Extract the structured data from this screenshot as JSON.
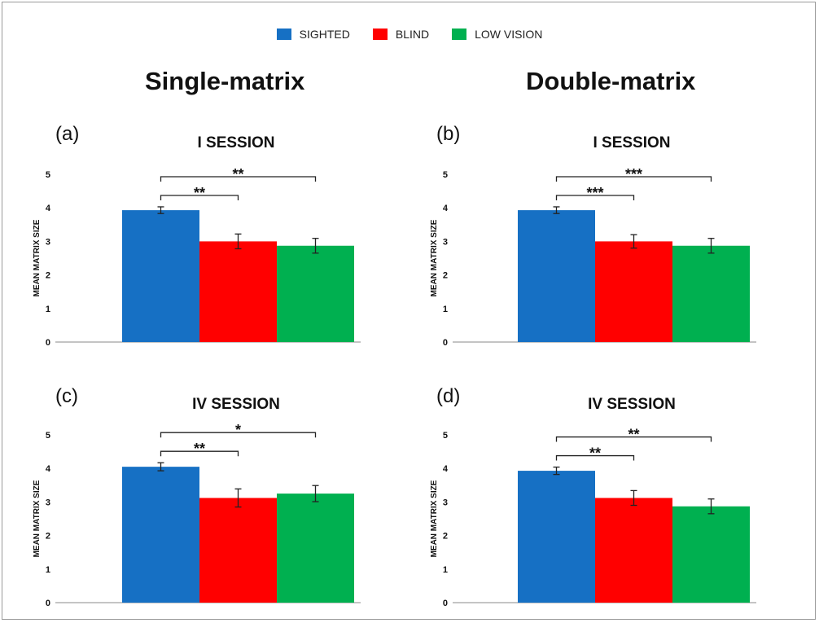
{
  "legend": [
    {
      "label": "SIGHTED",
      "color": "#1670c4"
    },
    {
      "label": "BLIND",
      "color": "#ff0000"
    },
    {
      "label": "LOW VISION",
      "color": "#00b050"
    }
  ],
  "column_titles": [
    "Single-matrix",
    "Double-matrix"
  ],
  "chart_data": [
    {
      "type": "bar",
      "panel": "(a)",
      "title": "I SESSION",
      "categories": [
        "SIGHTED",
        "BLIND",
        "LOW VISION"
      ],
      "values": [
        3.93,
        3.0,
        2.87
      ],
      "errors": [
        0.1,
        0.22,
        0.22
      ],
      "ylabel": "MEAN MATRIX SIZE",
      "ylim": [
        0,
        5
      ],
      "yticks": [
        "0",
        "1",
        "2",
        "3",
        "4",
        "5"
      ],
      "significance": [
        {
          "from": 0,
          "to": 1,
          "label": "**"
        },
        {
          "from": 0,
          "to": 2,
          "label": "**"
        }
      ]
    },
    {
      "type": "bar",
      "panel": "(b)",
      "title": "I  SESSION",
      "categories": [
        "SIGHTED",
        "BLIND",
        "LOW VISION"
      ],
      "values": [
        3.93,
        3.0,
        2.87
      ],
      "errors": [
        0.1,
        0.2,
        0.22
      ],
      "ylabel": "MEAN MATRIX SIZE",
      "ylim": [
        0,
        5
      ],
      "yticks": [
        "0",
        "1",
        "2",
        "3",
        "4",
        "5"
      ],
      "significance": [
        {
          "from": 0,
          "to": 1,
          "label": "***"
        },
        {
          "from": 0,
          "to": 2,
          "label": "***"
        }
      ]
    },
    {
      "type": "bar",
      "panel": "(c)",
      "title": "IV SESSION",
      "categories": [
        "SIGHTED",
        "BLIND",
        "LOW VISION"
      ],
      "values": [
        4.05,
        3.12,
        3.25
      ],
      "errors": [
        0.12,
        0.27,
        0.24
      ],
      "ylabel": "MEAN MATRIX SIZE",
      "ylim": [
        0,
        5
      ],
      "yticks": [
        "0",
        "1",
        "2",
        "3",
        "4",
        "5"
      ],
      "significance": [
        {
          "from": 0,
          "to": 1,
          "label": "**"
        },
        {
          "from": 0,
          "to": 2,
          "label": "*"
        }
      ]
    },
    {
      "type": "bar",
      "panel": "(d)",
      "title": "IV SESSION",
      "categories": [
        "SIGHTED",
        "BLIND",
        "LOW VISION"
      ],
      "values": [
        3.93,
        3.12,
        2.87
      ],
      "errors": [
        0.11,
        0.22,
        0.22
      ],
      "ylabel": "MEAN MATRIX SIZE",
      "ylim": [
        0,
        5
      ],
      "yticks": [
        "0",
        "1",
        "2",
        "3",
        "4",
        "5"
      ],
      "significance": [
        {
          "from": 0,
          "to": 1,
          "label": "**"
        },
        {
          "from": 0,
          "to": 2,
          "label": "**"
        }
      ]
    }
  ]
}
